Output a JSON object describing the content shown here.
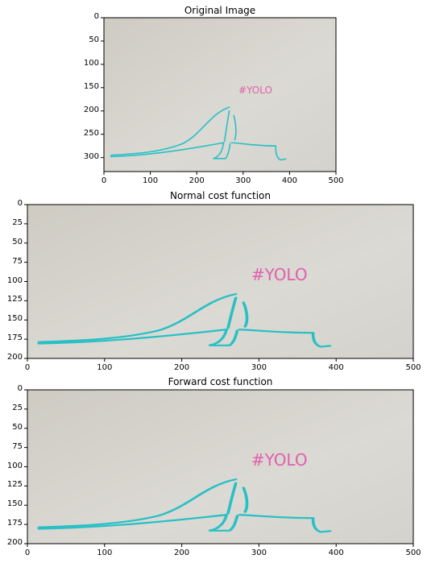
{
  "figure": {
    "panels": [
      {
        "title": "Original Image",
        "xticks": [
          "0",
          "100",
          "200",
          "300",
          "400",
          "500"
        ],
        "yticks": [
          "0",
          "50",
          "100",
          "150",
          "200",
          "250",
          "300"
        ]
      },
      {
        "title": "Normal cost function",
        "xticks": [
          "0",
          "100",
          "200",
          "300",
          "400",
          "500"
        ],
        "yticks": [
          "0",
          "25",
          "50",
          "75",
          "100",
          "125",
          "150",
          "175",
          "200"
        ]
      },
      {
        "title": "Forward cost function",
        "xticks": [
          "0",
          "100",
          "200",
          "300",
          "400",
          "500"
        ],
        "yticks": [
          "0",
          "25",
          "50",
          "75",
          "100",
          "125",
          "150",
          "175",
          "200"
        ]
      }
    ],
    "annotation_text": "#YOLO",
    "colors": {
      "line": "#27c0c6",
      "text_pink": "#e44aa8",
      "paper": "#d7d5cf"
    }
  }
}
